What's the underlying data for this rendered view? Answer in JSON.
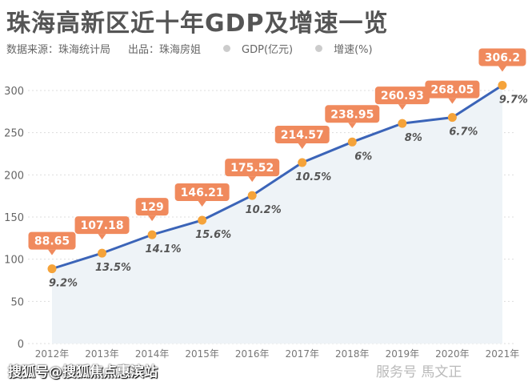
{
  "title": "珠海高新区近十年GDP及增速一览",
  "source": "数据来源：珠海统计局",
  "producer": "出品：珠海房姐",
  "watermark": "搜狐号@搜狐焦点惠滨站",
  "watermark2": "服务号 馬文正",
  "chart_data": {
    "type": "line",
    "title": "珠海高新区近十年GDP及增速一览",
    "categories": [
      "2012年",
      "2013年",
      "2014年",
      "2015年",
      "2016年",
      "2017年",
      "2018年",
      "2019年",
      "2020年",
      "2021年"
    ],
    "series": [
      {
        "name": "GDP(亿元)",
        "values": [
          88.65,
          107.18,
          129,
          146.21,
          175.52,
          214.57,
          238.95,
          260.93,
          268.05,
          306.2
        ],
        "color": "#3b64b8"
      },
      {
        "name": "增速(%)",
        "values": [
          "9.2%",
          "13.5%",
          "14.1%",
          "15.6%",
          "10.2%",
          "10.5%",
          "6%",
          "8%",
          "6.7%",
          "9.7%"
        ]
      }
    ],
    "ylim": [
      0,
      300
    ],
    "yticks": [
      0,
      50,
      100,
      150,
      200,
      250,
      300
    ],
    "grid": true,
    "legend": "top-left",
    "label_color": "#f08a5d",
    "point_color": "#f5a33a"
  }
}
